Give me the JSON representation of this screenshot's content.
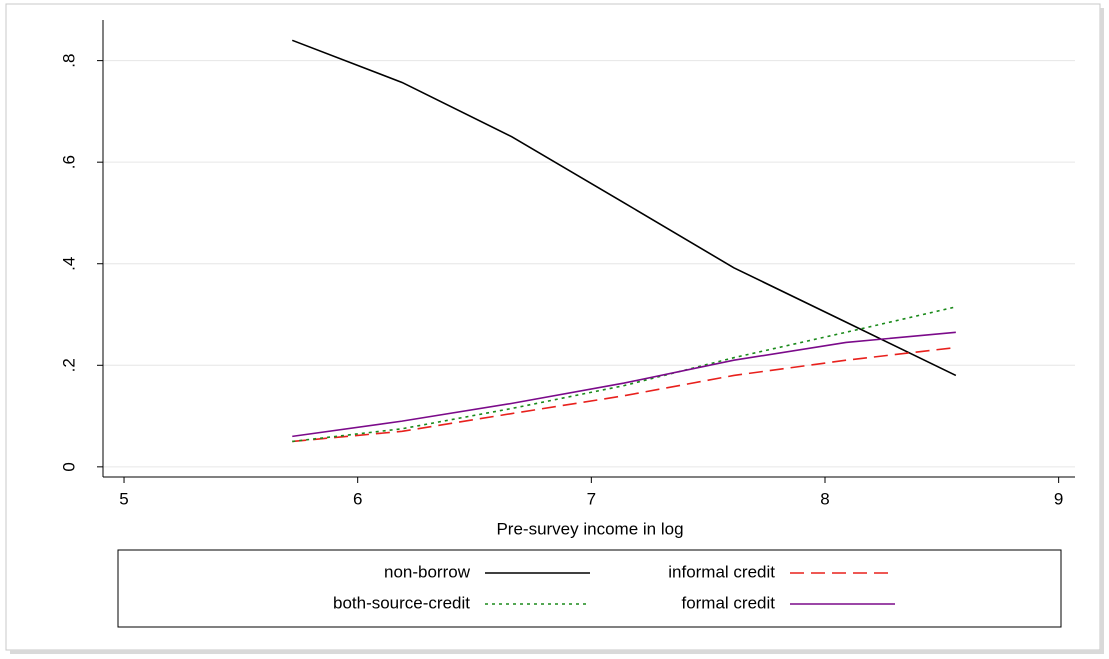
{
  "chart_data": {
    "type": "line",
    "xlabel": "Pre-survey income in log",
    "x": [
      5.72,
      6.19,
      6.66,
      7.14,
      7.61,
      8.09,
      8.56
    ],
    "xlim": [
      4.91,
      9.07
    ],
    "xticks": [
      5,
      6,
      7,
      8,
      9
    ],
    "ylim": [
      -0.02,
      0.88
    ],
    "yticks": [
      0,
      {
        "value": 0.2,
        "label": ".2"
      },
      {
        "value": 0.4,
        "label": ".4"
      },
      {
        "value": 0.6,
        "label": ".6"
      },
      {
        "value": 0.8,
        "label": ".8"
      }
    ],
    "grid": true,
    "series": [
      {
        "name": "non-borrow",
        "color": "#000000",
        "dash": "solid",
        "values": [
          0.84,
          0.757,
          0.65,
          0.52,
          0.392,
          0.285,
          0.18
        ]
      },
      {
        "name": "informal credit",
        "color": "#e8201c",
        "dash": "dashed",
        "values": [
          0.05,
          0.07,
          0.105,
          0.14,
          0.18,
          0.21,
          0.235
        ]
      },
      {
        "name": "both-source-credit",
        "color": "#1a8a1a",
        "dash": "dotted",
        "values": [
          0.05,
          0.075,
          0.115,
          0.16,
          0.215,
          0.265,
          0.315
        ]
      },
      {
        "name": "formal credit",
        "color": "#7b0a8a",
        "dash": "solid",
        "values": [
          0.06,
          0.09,
          0.125,
          0.165,
          0.21,
          0.245,
          0.265
        ]
      }
    ]
  }
}
